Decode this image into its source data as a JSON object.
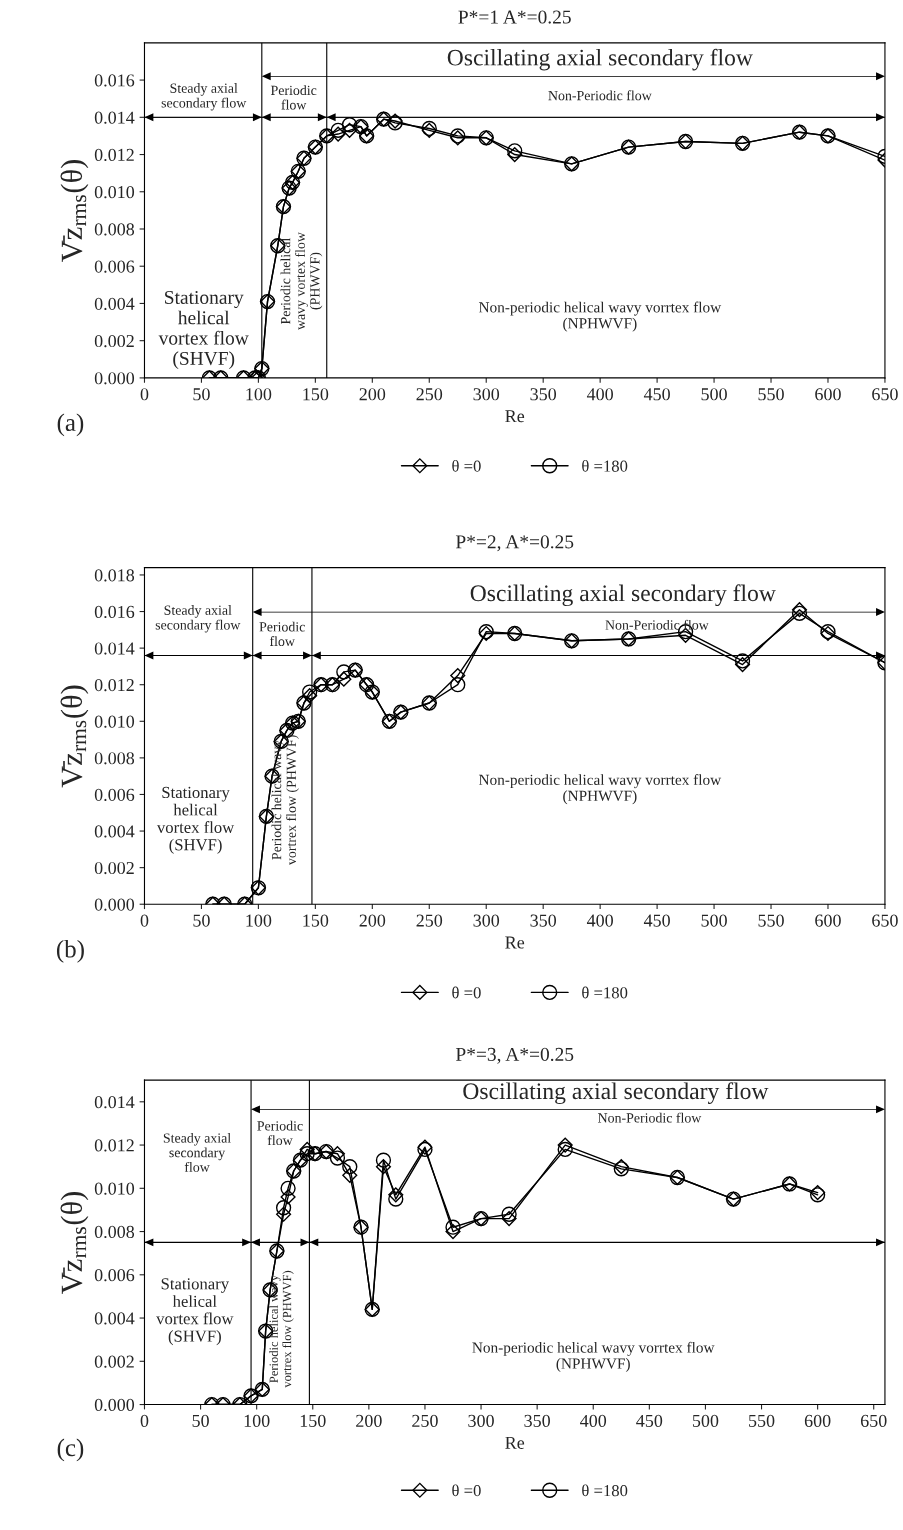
{
  "chart_data": [
    {
      "type": "line",
      "title": "P*=1 A*=0.25",
      "xlabel": "Re",
      "ylabel": "V̄z$_{rms}$(θ)",
      "xlim": [
        0,
        650
      ],
      "xticks": [
        0,
        50,
        100,
        150,
        200,
        250,
        300,
        350,
        400,
        450,
        500,
        550,
        600,
        650
      ],
      "ylim": [
        0,
        0.018
      ],
      "yticks": [
        {
          "value": 0,
          "label": "0.000"
        },
        {
          "value": 0.002,
          "label": "0.002"
        },
        {
          "value": 0.004,
          "label": "0.004"
        },
        {
          "value": 0.006,
          "label": "0.006"
        },
        {
          "value": 0.008,
          "label": "0.008"
        },
        {
          "value": 0.01,
          "label": "0.010"
        },
        {
          "value": 0.012,
          "label": "0.012"
        },
        {
          "value": 0.014,
          "label": "0.014"
        },
        {
          "value": 0.016,
          "label": "0.016"
        }
      ],
      "legend": "bottom",
      "grid": false,
      "x": [
        57,
        67,
        87,
        97,
        100,
        103,
        108,
        117,
        122,
        127,
        130,
        135,
        140,
        150,
        160,
        170,
        180,
        190,
        195,
        210,
        220,
        250,
        275,
        300,
        325,
        375,
        425,
        475,
        525,
        575,
        600,
        650
      ],
      "series": [
        {
          "name": "θ =0",
          "color": "#000000",
          "marker": "diamond",
          "values": [
            0,
            0,
            0,
            0,
            0,
            0.0005,
            0.0041,
            0.0071,
            0.0092,
            0.0102,
            0.0105,
            0.0111,
            0.0118,
            0.0124,
            0.013,
            0.0131,
            0.0133,
            0.0135,
            0.013,
            0.0139,
            0.0138,
            0.0133,
            0.0129,
            0.0129,
            0.012,
            0.0115,
            0.0124,
            0.0127,
            0.0126,
            0.0132,
            0.013,
            0.0117
          ]
        },
        {
          "name": "θ =180",
          "color": "#000000",
          "marker": "circle",
          "values": [
            0,
            0,
            0,
            0,
            0,
            0.0005,
            0.0041,
            0.0071,
            0.0092,
            0.0102,
            0.0105,
            0.0111,
            0.0118,
            0.0124,
            0.013,
            0.0133,
            0.0136,
            0.0135,
            0.013,
            0.0139,
            0.0137,
            0.0134,
            0.013,
            0.0129,
            0.0122,
            0.0115,
            0.0124,
            0.0127,
            0.0126,
            0.0132,
            0.013,
            0.0119
          ]
        }
      ],
      "ref_lines": [
        {
          "axis": "x",
          "value": 103,
          "color": "#000000"
        },
        {
          "axis": "x",
          "value": 160,
          "color": "#000000"
        },
        {
          "axis": "y",
          "value": 0.014,
          "color": "#000000"
        }
      ],
      "annotations": [
        "Oscillating axial secondary flow",
        "Steady axial\nsecondary flow",
        "Periodic\nflow",
        "Non-Periodic flow",
        "Stationary\nhelical\nvortex flow\n(SHVF)",
        "Periodic helical\nwavy vortex flow\n(PHWVF)",
        "Non-periodic helical wavy vorrtex flow\n(NPHWVF)",
        "(a)"
      ]
    },
    {
      "type": "line",
      "title": "P*=2, A*=0.25",
      "xlabel": "Re",
      "ylabel": "V̄z$_{rms}$(θ)",
      "xlim": [
        0,
        650
      ],
      "xticks": [
        0,
        50,
        100,
        150,
        200,
        250,
        300,
        350,
        400,
        450,
        500,
        550,
        600,
        650
      ],
      "ylim": [
        0,
        0.0184
      ],
      "yticks": [
        {
          "value": 0,
          "label": "0.000"
        },
        {
          "value": 0.002,
          "label": "0.002"
        },
        {
          "value": 0.004,
          "label": "0.004"
        },
        {
          "value": 0.006,
          "label": "0.006"
        },
        {
          "value": 0.008,
          "label": "0.008"
        },
        {
          "value": 0.01,
          "label": "0.010"
        },
        {
          "value": 0.012,
          "label": "0.012"
        },
        {
          "value": 0.014,
          "label": "0.014"
        },
        {
          "value": 0.016,
          "label": "0.016"
        },
        {
          "value": 0.018,
          "label": "0.018"
        }
      ],
      "legend": "bottom",
      "grid": false,
      "x": [
        60,
        70,
        88,
        100,
        107,
        112,
        120,
        125,
        130,
        135,
        140,
        145,
        155,
        165,
        175,
        185,
        195,
        200,
        215,
        225,
        250,
        275,
        300,
        325,
        375,
        425,
        475,
        525,
        575,
        600,
        650
      ],
      "series": [
        {
          "name": "θ =0",
          "color": "#000000",
          "marker": "diamond",
          "values": [
            0,
            0,
            0,
            0.0009,
            0.0048,
            0.007,
            0.0089,
            0.0095,
            0.0099,
            0.01,
            0.011,
            0.0114,
            0.012,
            0.012,
            0.0123,
            0.0128,
            0.012,
            0.0116,
            0.01,
            0.0105,
            0.011,
            0.0125,
            0.0148,
            0.0148,
            0.0144,
            0.0145,
            0.0147,
            0.0131,
            0.0161,
            0.0148,
            0.0132
          ]
        },
        {
          "name": "θ =180",
          "color": "#000000",
          "marker": "circle",
          "values": [
            0,
            0,
            0,
            0.0009,
            0.0048,
            0.007,
            0.0089,
            0.0095,
            0.0099,
            0.01,
            0.011,
            0.0116,
            0.012,
            0.012,
            0.0127,
            0.0128,
            0.012,
            0.0116,
            0.01,
            0.0105,
            0.011,
            0.012,
            0.0149,
            0.0148,
            0.0144,
            0.0145,
            0.0149,
            0.0133,
            0.0159,
            0.0149,
            0.0132
          ]
        }
      ],
      "ref_lines": [
        {
          "axis": "x",
          "value": 95,
          "color": "#000000"
        },
        {
          "axis": "x",
          "value": 147,
          "color": "#000000"
        },
        {
          "axis": "y",
          "value": 0.0136,
          "color": "#000000"
        }
      ],
      "annotations": [
        "Oscillating axial secondary flow",
        "Steady axial\nsecondary flow",
        "Periodic\nflow",
        "Non-Periodic flow",
        "Stationary\nhelical\nvortex flow\n(SHVF)",
        "Periodic helical wavy\nvortrex flow (PHWVF)",
        "Non-periodic helical wavy vorrtex flow\n(NPHWVF)",
        "(b)"
      ]
    },
    {
      "type": "line",
      "title": "P*=3, A*=0.25",
      "xlabel": "Re",
      "ylabel": "V̄z$_{rms}$(θ)",
      "xlim": [
        0,
        660
      ],
      "xticks": [
        0,
        50,
        100,
        150,
        200,
        250,
        300,
        350,
        400,
        450,
        500,
        550,
        600,
        650
      ],
      "ylim": [
        0,
        0.015
      ],
      "yticks": [
        {
          "value": 0,
          "label": "0.000"
        },
        {
          "value": 0.002,
          "label": "0.002"
        },
        {
          "value": 0.004,
          "label": "0.004"
        },
        {
          "value": 0.006,
          "label": "0.006"
        },
        {
          "value": 0.008,
          "label": "0.008"
        },
        {
          "value": 0.01,
          "label": "0.010"
        },
        {
          "value": 0.012,
          "label": "0.012"
        },
        {
          "value": 0.014,
          "label": "0.014"
        }
      ],
      "legend": "bottom",
      "grid": false,
      "x": [
        60,
        70,
        85,
        95,
        105,
        108,
        112,
        118,
        124,
        128,
        133,
        139,
        145,
        152,
        162,
        172,
        183,
        193,
        203,
        213,
        224,
        250,
        275,
        300,
        325,
        375,
        425,
        475,
        525,
        575,
        600
      ],
      "series": [
        {
          "name": "θ =0",
          "color": "#000000",
          "marker": "diamond",
          "values": [
            0,
            0,
            0,
            0.0004,
            0.0007,
            0.0034,
            0.0053,
            0.0071,
            0.0088,
            0.0096,
            0.0108,
            0.0113,
            0.0118,
            0.0116,
            0.0117,
            0.0116,
            0.0106,
            0.0082,
            0.0044,
            0.011,
            0.0097,
            0.0119,
            0.008,
            0.0086,
            0.0086,
            0.012,
            0.011,
            0.0105,
            0.0095,
            0.0102,
            0.0098
          ]
        },
        {
          "name": "θ =180",
          "color": "#000000",
          "marker": "circle",
          "values": [
            0,
            0,
            0,
            0.0004,
            0.0007,
            0.0034,
            0.0053,
            0.0071,
            0.0091,
            0.01,
            0.0108,
            0.0113,
            0.0116,
            0.0116,
            0.0117,
            0.0114,
            0.011,
            0.0082,
            0.0044,
            0.0113,
            0.0095,
            0.0118,
            0.0082,
            0.0086,
            0.0088,
            0.0118,
            0.0109,
            0.0105,
            0.0095,
            0.0102,
            0.0097
          ]
        }
      ],
      "ref_lines": [
        {
          "axis": "x",
          "value": 95,
          "color": "#000000"
        },
        {
          "axis": "x",
          "value": 147,
          "color": "#000000"
        },
        {
          "axis": "y",
          "value": 0.0075,
          "color": "#000000"
        }
      ],
      "annotations": [
        "Oscillating axial secondary flow",
        "Steady axial\nsecondary\nflow",
        "Periodic\nflow",
        "Non-Periodic flow",
        "Stationary\nhelical\nvortex flow\n(SHVF)",
        "Periodic helical wavy\nvortrex flow (PHWVF)",
        "Non-periodic helical wavy vorrtex flow\n(NPHWVF)",
        "(c)"
      ]
    }
  ]
}
